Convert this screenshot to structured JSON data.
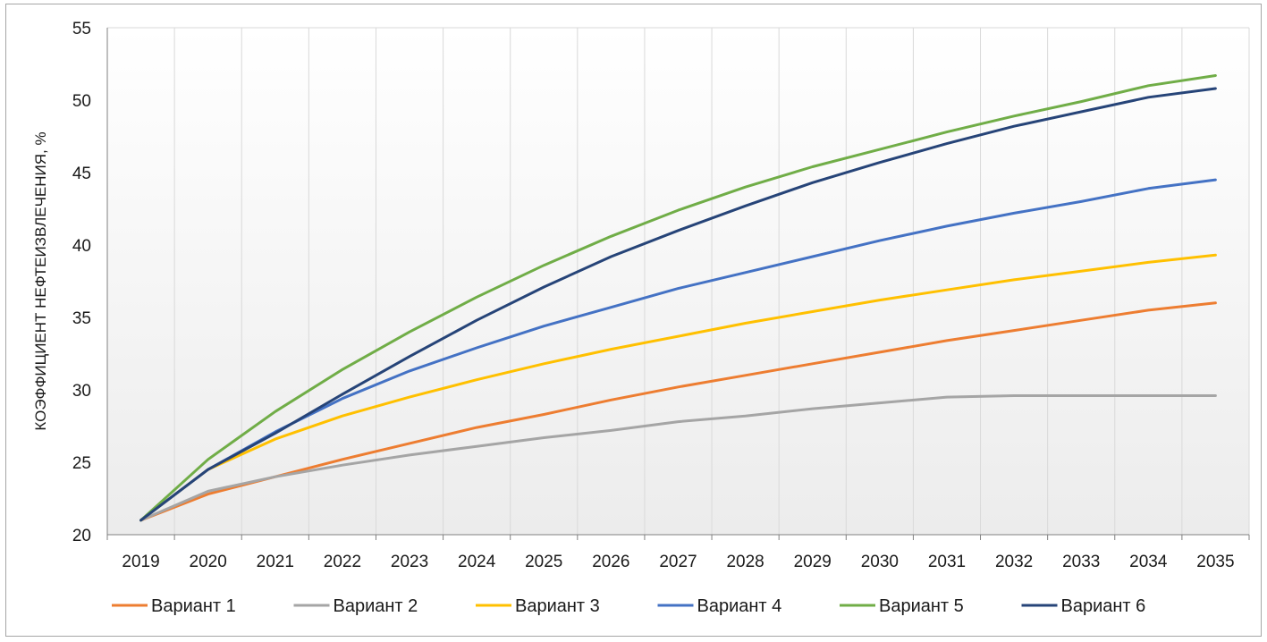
{
  "chart_data": {
    "type": "line",
    "title": "",
    "xlabel": "",
    "ylabel": "КОЭФФИЦИЕНТ НЕФТЕИЗВЛЕЧЕНИЯ, %",
    "ylim": [
      20,
      55
    ],
    "yticks": [
      20,
      25,
      30,
      35,
      40,
      45,
      50,
      55
    ],
    "grid": true,
    "legend": "bottom",
    "x": [
      "2019",
      "2020",
      "2021",
      "2022",
      "2023",
      "2024",
      "2025",
      "2026",
      "2027",
      "2028",
      "2029",
      "2030",
      "2031",
      "2032",
      "2033",
      "2034",
      "2035"
    ],
    "series": [
      {
        "name": "Вариант 1",
        "color": "#ed7d31",
        "values": [
          21.0,
          22.8,
          24.0,
          25.2,
          26.3,
          27.4,
          28.3,
          29.3,
          30.2,
          31.0,
          31.8,
          32.6,
          33.4,
          34.1,
          34.8,
          35.5,
          36.0
        ]
      },
      {
        "name": "Вариант 2",
        "color": "#a5a5a5",
        "values": [
          21.0,
          23.0,
          24.0,
          24.8,
          25.5,
          26.1,
          26.7,
          27.2,
          27.8,
          28.2,
          28.7,
          29.1,
          29.5,
          29.6,
          29.6,
          29.6,
          29.6
        ]
      },
      {
        "name": "Вариант 3",
        "color": "#ffc000",
        "values": [
          21.0,
          24.5,
          26.6,
          28.2,
          29.5,
          30.7,
          31.8,
          32.8,
          33.7,
          34.6,
          35.4,
          36.2,
          36.9,
          37.6,
          38.2,
          38.8,
          39.3
        ]
      },
      {
        "name": "Вариант 4",
        "color": "#4472c4",
        "values": [
          21.0,
          24.5,
          27.1,
          29.4,
          31.3,
          32.9,
          34.4,
          35.7,
          37.0,
          38.1,
          39.2,
          40.3,
          41.3,
          42.2,
          43.0,
          43.9,
          44.5
        ]
      },
      {
        "name": "Вариант 5",
        "color": "#70ad47",
        "values": [
          21.0,
          25.2,
          28.5,
          31.4,
          34.0,
          36.4,
          38.6,
          40.6,
          42.4,
          44.0,
          45.4,
          46.6,
          47.8,
          48.9,
          49.9,
          51.0,
          51.7
        ]
      },
      {
        "name": "Вариант 6",
        "color": "#264478",
        "values": [
          21.0,
          24.5,
          27.0,
          29.7,
          32.3,
          34.8,
          37.1,
          39.2,
          41.0,
          42.7,
          44.3,
          45.7,
          47.0,
          48.2,
          49.2,
          50.2,
          50.8
        ]
      }
    ]
  }
}
